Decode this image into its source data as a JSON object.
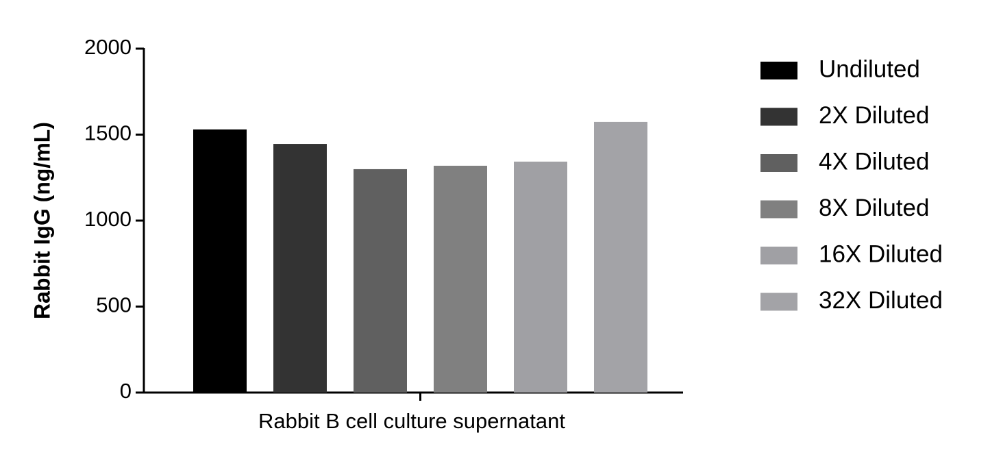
{
  "chart_data": {
    "type": "bar",
    "categories": [
      "Rabbit B cell culture supernatant"
    ],
    "x_label": "Rabbit B cell culture supernatant",
    "y_label": "Rabbit IgG (ng/mL)",
    "series": [
      {
        "name": "Undiluted",
        "color": "#000000",
        "values": [
          1530
        ]
      },
      {
        "name": "2X Diluted",
        "color": "#333333",
        "values": [
          1446
        ]
      },
      {
        "name": "4X Diluted",
        "color": "#606060",
        "values": [
          1299
        ]
      },
      {
        "name": "8X Diluted",
        "color": "#808080",
        "values": [
          1319
        ]
      },
      {
        "name": "16X Diluted",
        "color": "#a0a0a4",
        "values": [
          1343
        ]
      },
      {
        "name": "32X Diluted",
        "color": "#a3a3a7",
        "values": [
          1574
        ]
      }
    ],
    "ylim": [
      0,
      2000
    ],
    "yticks": [
      0,
      500,
      1000,
      1500,
      2000
    ],
    "legend": "right"
  }
}
